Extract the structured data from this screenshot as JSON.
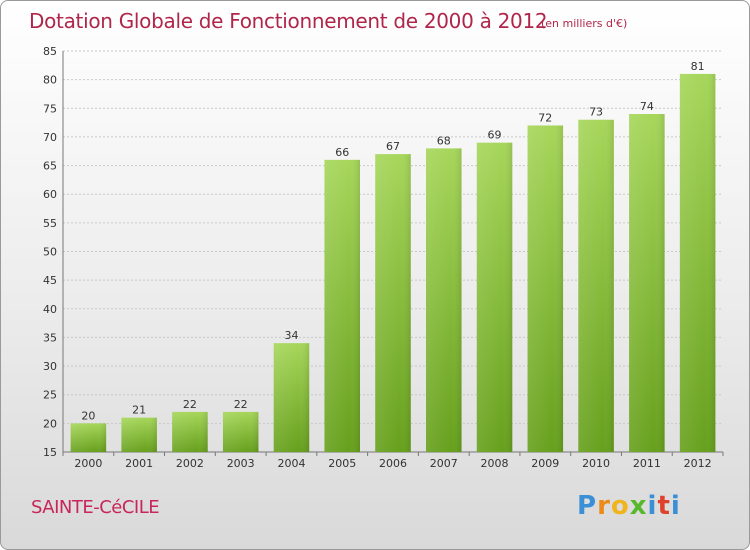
{
  "header": {
    "title": "Dotation Globale de Fonctionnement de 2000 à 2012",
    "unit_note": "(en milliers d'€)"
  },
  "footer": {
    "commune": "SAINTE-CéCILE",
    "logo_letters": [
      "P",
      "r",
      "o",
      "x",
      "i",
      "t",
      "i"
    ]
  },
  "colors": {
    "title": "#b0264a",
    "bar_light": "#a6d65a",
    "bar_dark": "#66a01c"
  },
  "chart_data": {
    "type": "bar",
    "title": "Dotation Globale de Fonctionnement de 2000 à 2012",
    "subtitle": "(en milliers d'€)",
    "xlabel": "",
    "ylabel": "",
    "categories": [
      "2000",
      "2001",
      "2002",
      "2003",
      "2004",
      "2005",
      "2006",
      "2007",
      "2008",
      "2009",
      "2010",
      "2011",
      "2012"
    ],
    "values": [
      20,
      21,
      22,
      22,
      34,
      66,
      67,
      68,
      69,
      72,
      73,
      74,
      81
    ],
    "ylim": [
      15,
      85
    ],
    "yticks": [
      15,
      20,
      25,
      30,
      35,
      40,
      45,
      50,
      55,
      60,
      65,
      70,
      75,
      80,
      85
    ],
    "grid": true,
    "legend": "none"
  }
}
